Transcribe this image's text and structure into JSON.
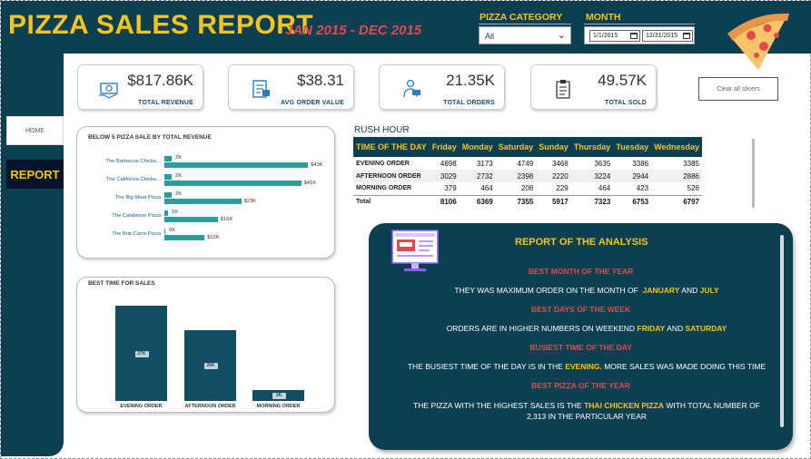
{
  "header": {
    "title": "PIZZA SALES REPORT",
    "subtitle": "JAN 2015 - DEC 2015",
    "category_label": "PIZZA CATEGORY",
    "category_value": "All",
    "month_label": "MONTH",
    "date_from": "1/1/2015",
    "date_to": "12/31/2015"
  },
  "nav": {
    "home": "HOME",
    "report": "REPORT"
  },
  "kpis": [
    {
      "value": "$817.86K",
      "label": "TOTAL REVENUE",
      "icon": "money-icon"
    },
    {
      "value": "$38.31",
      "label": "AVG ORDER VALUE",
      "icon": "receipt-icon"
    },
    {
      "value": "21.35K",
      "label": "TOTAL ORDERS",
      "icon": "delivery-icon"
    },
    {
      "value": "49.57K",
      "label": "TOTAL SOLD",
      "icon": "clipboard-icon"
    }
  ],
  "clear_slicers": "Clear all slicers",
  "below5": {
    "title": "BELOW 5 PIZZA SALE BY TOTAL REVENUE",
    "rows": [
      {
        "name": "The Barbecue Chicke...",
        "qty": "2K",
        "revenue": "$43K"
      },
      {
        "name": "The California Chicke...",
        "qty": "2K",
        "revenue": "$41K"
      },
      {
        "name": "The Big Meat Pizza",
        "qty": "2K",
        "revenue": "$23K"
      },
      {
        "name": "The Calabrese Pizza",
        "qty": "1K",
        "revenue": "$16K"
      },
      {
        "name": "The Brie Carre Pizza",
        "qty": "0K",
        "revenue": "$12K"
      }
    ]
  },
  "rush": {
    "title": "RUSH HOUR",
    "headers": [
      "TIME OF THE DAY",
      "Friday",
      "Monday",
      "Saturday",
      "Sunday",
      "Thursday",
      "Tuesday",
      "Wednesday"
    ],
    "rows": [
      [
        "EVENING ORDER",
        "4698",
        "3173",
        "4749",
        "3468",
        "3635",
        "3386",
        "3385"
      ],
      [
        "AFTERNOON ORDER",
        "3029",
        "2732",
        "2398",
        "2220",
        "3224",
        "2944",
        "2886"
      ],
      [
        "MORNING ORDER",
        "379",
        "464",
        "208",
        "229",
        "464",
        "423",
        "526"
      ],
      [
        "Total",
        "8106",
        "6369",
        "7355",
        "5917",
        "7323",
        "6753",
        "6797"
      ]
    ]
  },
  "best_time": {
    "title": "BEST TIME FOR SALES",
    "bars": [
      {
        "label": "EVENING ORDER",
        "value": "27K"
      },
      {
        "label": "AFTERNOON ORDER",
        "value": "20K"
      },
      {
        "label": "MORNING ORDER",
        "value": "3K"
      }
    ]
  },
  "chart_data": [
    {
      "type": "bar",
      "title": "BELOW 5 PIZZA SALE BY TOTAL REVENUE",
      "categories": [
        "The Barbecue Chicke...",
        "The California Chicke...",
        "The Big Meat Pizza",
        "The Calabrese Pizza",
        "The Brie Carre Pizza"
      ],
      "series": [
        {
          "name": "",
          "values": [
            2,
            2,
            2,
            1,
            0
          ]
        },
        {
          "name": "",
          "values": [
            43,
            41,
            23,
            16,
            12
          ]
        }
      ]
    },
    {
      "type": "bar",
      "title": "BEST TIME FOR SALES",
      "categories": [
        "EVENING ORDER",
        "AFTERNOON ORDER",
        "MORNING ORDER"
      ],
      "values": [
        27,
        20,
        3
      ]
    }
  ],
  "analysis": {
    "title": "REPORT OF THE ANALYSIS",
    "h1": "BEST MONTH OF THE YEAR",
    "t1a": "THEY WAS MAXIMUM ORDER ON THE MONTH OF",
    "t1b": "JANUARY",
    "t1c": "AND",
    "t1d": "JULY",
    "h2": "BEST DAYS OF THE WEEK",
    "t2a": "ORDERS ARE IN HIGHER NUMBERS ON WEEKEND",
    "t2b": "FRIDAY",
    "t2c": "AND",
    "t2d": "SATURDAY",
    "h3": "BUSIEST TIME OF THE DAY",
    "t3a": "THE BUSIEST TIME OF THE DAY IS IN THE",
    "t3b": "EVENING.",
    "t3c": "MORE SALES WAS MADE DOING THIS TIME",
    "h4": "BEST PIZZA OF THE YEAR",
    "t4a": "THE PIZZA WITH THE HIGHEST SALES IS THE",
    "t4b": "THAI CHICKEN PIZZA",
    "t4c": "WITH TOTAL NUMBER OF",
    "t4d": "2,313 IN THE PARTICULAR YEAR"
  },
  "colors": {
    "navy": "#0d3f52",
    "yellow": "#f5c518",
    "red": "#e8474c",
    "teal": "#2f9a9a"
  }
}
